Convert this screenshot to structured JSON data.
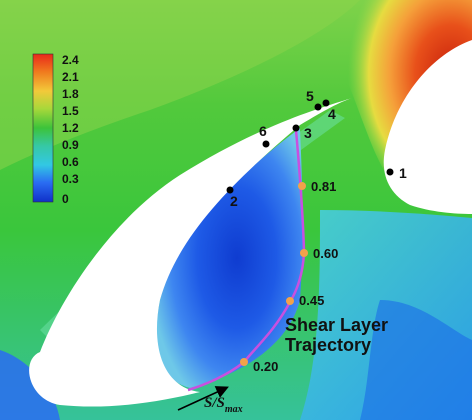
{
  "colors": {
    "field_base": "#39c93a",
    "field_upper": "#86d24a",
    "low_speed_core": "#1248d8",
    "low_speed_mid": "#2b6cf0",
    "shear_layer": "#6be0a4",
    "high_speed": "#d02a10",
    "high_speed_outer": "#f07420",
    "trajectory_line": "#c850e0",
    "trajectory_points": "#f2a24a",
    "marker_points": "#000000",
    "solid_body": "#ffffff"
  },
  "colorbar": {
    "labels": [
      "2.4",
      "2.1",
      "1.8",
      "1.5",
      "1.2",
      "0.9",
      "0.6",
      "0.3",
      "0"
    ],
    "colors": [
      "#e8281a",
      "#f07a1e",
      "#f2c93a",
      "#a8d83a",
      "#3cc33a",
      "#36c8a4",
      "#32c8e4",
      "#2a6cf2",
      "#1030c8"
    ]
  },
  "markers": [
    {
      "label": "1"
    },
    {
      "label": "2"
    },
    {
      "label": "3"
    },
    {
      "label": "4"
    },
    {
      "label": "5"
    },
    {
      "label": "6"
    }
  ],
  "trajectory": {
    "title_line1": "Shear Layer",
    "title_line2": "Trajectory",
    "points": [
      {
        "label": "0.81"
      },
      {
        "label": "0.60"
      },
      {
        "label": "0.45"
      },
      {
        "label": "0.20"
      }
    ]
  },
  "arrow_label": {
    "main": "S/S",
    "subscript": "max"
  }
}
